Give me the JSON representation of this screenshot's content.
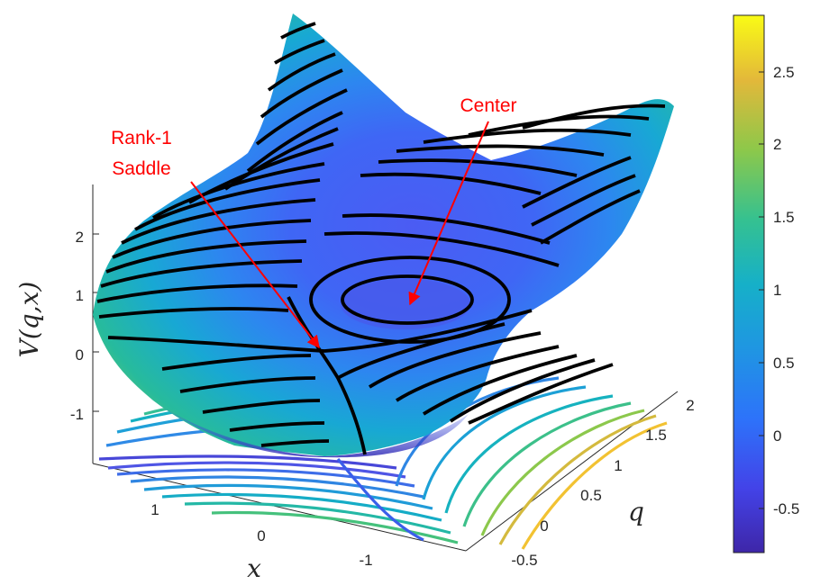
{
  "chart_data": {
    "type": "surface",
    "title": "",
    "zlabel": "V(q,x)",
    "xlabel": "x",
    "ylabel": "q",
    "x_ticks": [
      "1",
      "0",
      "-1"
    ],
    "q_ticks": [
      "-0.5",
      "0",
      "0.5",
      "1",
      "1.5",
      "2"
    ],
    "z_ticks": [
      "-1",
      "0",
      "1",
      "2"
    ],
    "xlim": [
      -1.6,
      1.6
    ],
    "qlim": [
      -0.6,
      2.1
    ],
    "zlim": [
      -1.8,
      2.8
    ],
    "colormap": "parula",
    "colorbar": {
      "range": [
        -0.85,
        2.85
      ],
      "ticks": [
        "-0.5",
        "0",
        "0.5",
        "1",
        "1.5",
        "2",
        "2.5"
      ]
    },
    "contour_lines": "black contours on surface, colored contours projected on floor",
    "annotations": [
      {
        "text": "Center",
        "lines": [
          "Center"
        ],
        "color": "#ff0000"
      },
      {
        "text": "Rank-1 Saddle",
        "lines": [
          "Rank-1",
          "Saddle"
        ],
        "color": "#ff0000"
      }
    ]
  }
}
